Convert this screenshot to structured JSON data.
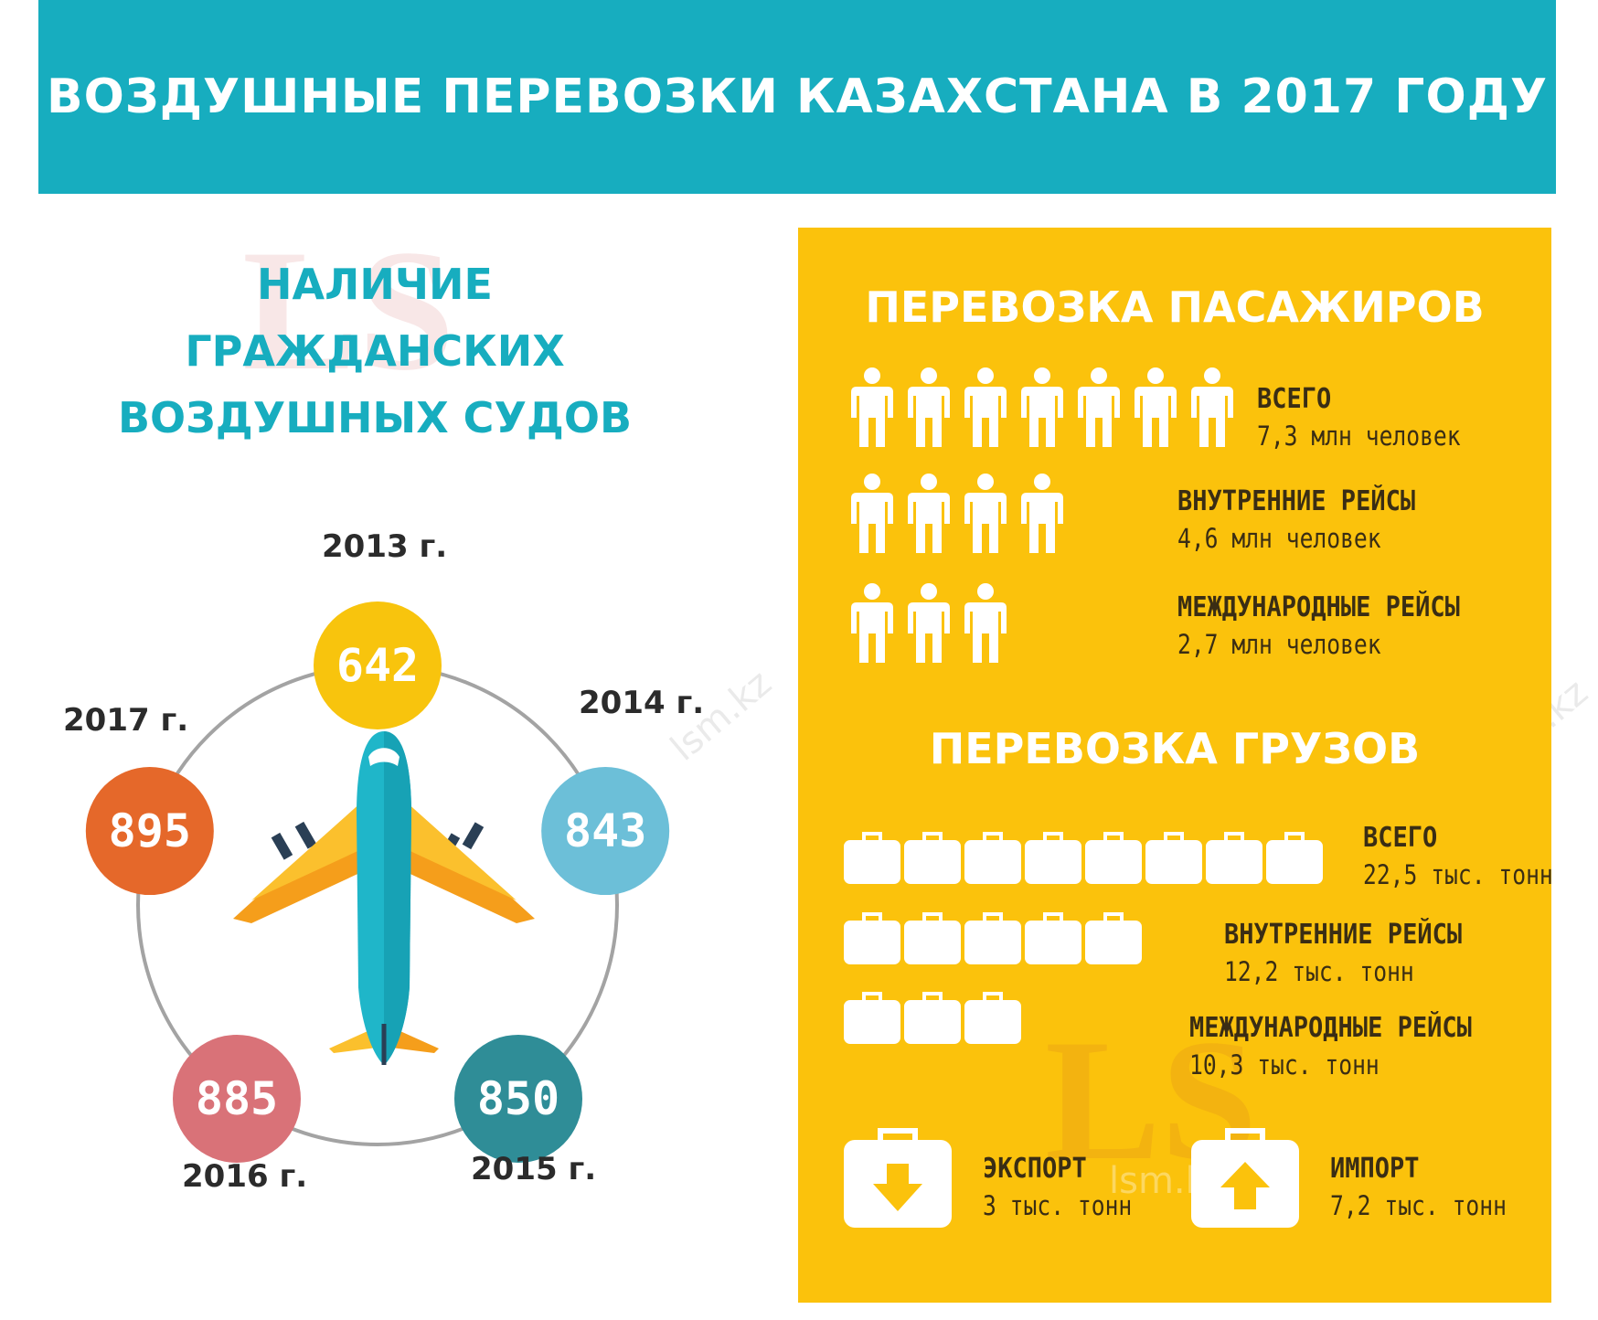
{
  "title": "ВОЗДУШНЫЕ ПЕРЕВОЗКИ КАЗАХСТАНА В 2017 ГОДУ",
  "aircraft": {
    "title_lines": [
      "НАЛИЧИЕ",
      "ГРАЖДАНСКИХ",
      "ВОЗДУШНЫХ СУДОВ"
    ],
    "colors": {
      "2013": "#f8c40d",
      "2014": "#6cbfd8",
      "2015": "#2f8d97",
      "2016": "#d97278",
      "2017": "#e5682a",
      "ring": "#a3a3a3"
    }
  },
  "chart_data": {
    "type": "table",
    "title": "НАЛИЧИЕ ГРАЖДАНСКИХ ВОЗДУШНЫХ СУДОВ",
    "categories": [
      "2013 г.",
      "2014 г.",
      "2015 г.",
      "2016 г.",
      "2017 г."
    ],
    "values": [
      642,
      843,
      850,
      885,
      895
    ]
  },
  "passengers": {
    "heading": "ПЕРЕВОЗКА ПАСАЖИРОВ",
    "rows": [
      {
        "label": "ВСЕГО",
        "value": "7,3 млн человек",
        "icons": 7
      },
      {
        "label": "ВНУТРЕННИЕ РЕЙСЫ",
        "value": "4,6 млн человек",
        "icons": 4
      },
      {
        "label": "МЕЖДУНАРОДНЫЕ РЕЙСЫ",
        "value": "2,7 млн человек",
        "icons": 3
      }
    ]
  },
  "cargo": {
    "heading": "ПЕРЕВОЗКА ГРУЗОВ",
    "rows": [
      {
        "label": "ВСЕГО",
        "value": "22,5 тыс. тонн",
        "icons": 8
      },
      {
        "label": "ВНУТРЕННИЕ РЕЙСЫ",
        "value": "12,2 тыс. тонн",
        "icons": 5
      },
      {
        "label": "МЕЖДУНАРОДНЫЕ РЕЙСЫ",
        "value": "10,3 тыс. тонн",
        "icons": 3
      }
    ],
    "export": {
      "label": "ЭКСПОРТ",
      "value": "3 тыс. тонн",
      "icon": "suitcase-arrow-down-icon"
    },
    "import": {
      "label": "ИМПОРТ",
      "value": "7,2 тыс. тонн",
      "icon": "suitcase-arrow-up-icon"
    }
  },
  "watermark": {
    "logo": "LS",
    "site": "lsm.kz"
  }
}
